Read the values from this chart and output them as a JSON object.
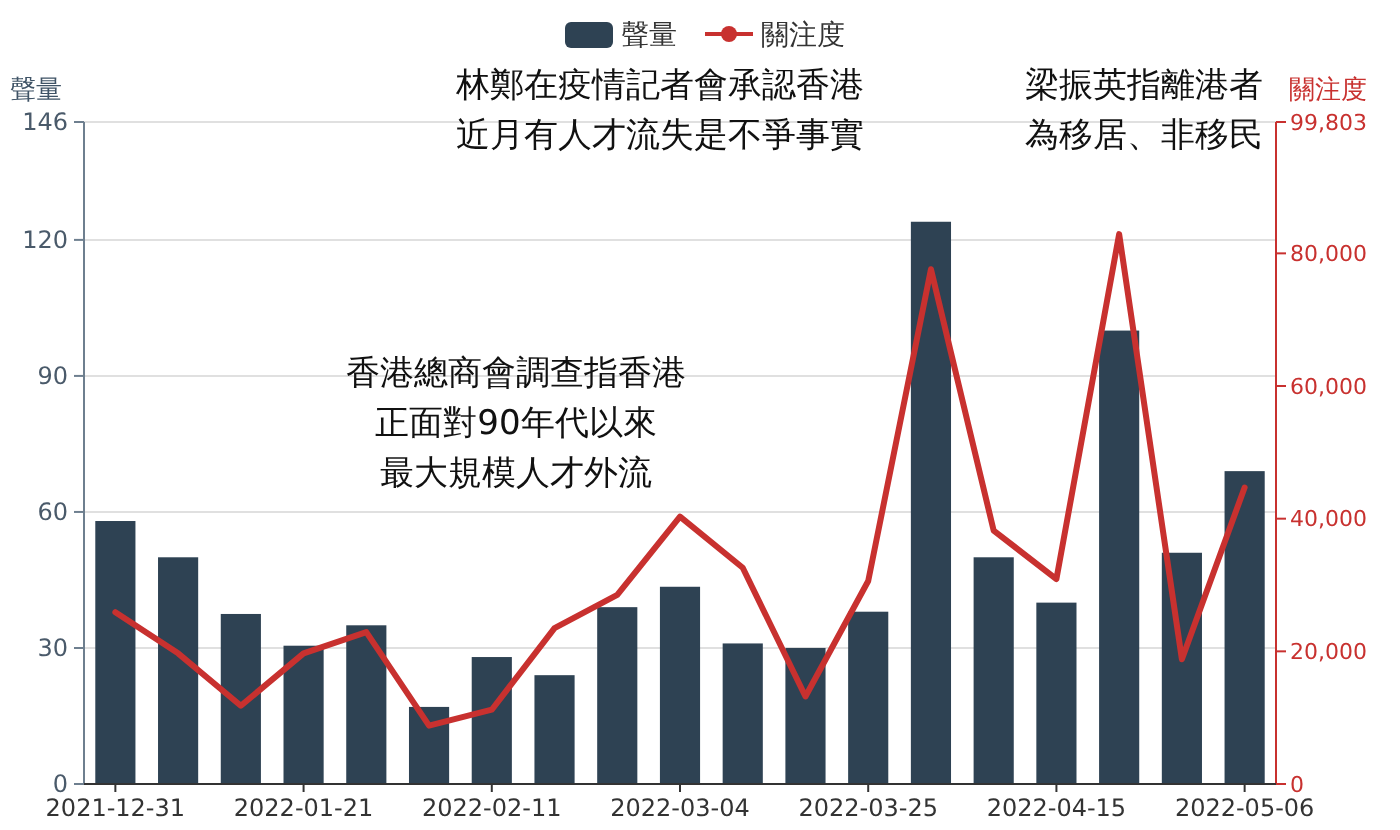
{
  "chart_data": {
    "type": "bar",
    "categories": [
      "2021-12-31",
      null,
      null,
      "2022-01-21",
      null,
      null,
      "2022-02-11",
      null,
      null,
      "2022-03-04",
      null,
      null,
      "2022-03-25",
      null,
      null,
      "2022-04-15",
      null,
      null,
      "2022-05-06"
    ],
    "series": [
      {
        "name": "聲量",
        "color": "#2e4253",
        "values": [
          58,
          50,
          37.5,
          30.5,
          35,
          17,
          28,
          24,
          39,
          43.5,
          31,
          30,
          38,
          124,
          50,
          40,
          100,
          51,
          69
        ]
      },
      {
        "name": "關注度",
        "type": "line",
        "axis": "y2",
        "color": "#c8312f",
        "values": [
          25900,
          19700,
          11800,
          19700,
          22900,
          8800,
          11200,
          23500,
          28500,
          40300,
          32600,
          13200,
          30600,
          77600,
          38200,
          30900,
          82900,
          18800,
          44700
        ]
      }
    ],
    "ylabel": "聲量",
    "y2label": "關注度",
    "ylim": [
      0,
      146
    ],
    "yticks": [
      0,
      30,
      60,
      90,
      120,
      146
    ],
    "y2lim": [
      0,
      99803
    ],
    "y2ticks": [
      0,
      {
        "value": 20000,
        "label": "20,000"
      },
      {
        "value": 40000,
        "label": "40,000"
      },
      {
        "value": 60000,
        "label": "60,000"
      },
      {
        "value": 80000,
        "label": "80,000"
      },
      {
        "value": 99803,
        "label": "99,803"
      }
    ],
    "annotations": [
      "林鄭在疫情記者會承認香港近月有人才流失是不爭事實",
      "梁振英指離港者為移居、非移民",
      "香港總商會調查指香港正面對90年代以來最大規模人才外流"
    ],
    "grid": "y",
    "legend": "top"
  }
}
